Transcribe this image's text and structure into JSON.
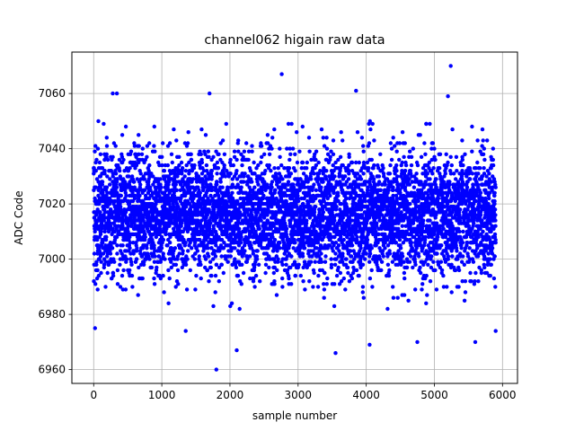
{
  "chart_data": {
    "type": "scatter",
    "title": "channel062 higain raw data",
    "xlabel": "sample number",
    "ylabel": "ADC Code",
    "xlim": [
      -320,
      6220
    ],
    "ylim": [
      6955,
      7075
    ],
    "xticks": [
      0,
      1000,
      2000,
      3000,
      4000,
      5000,
      6000
    ],
    "yticks": [
      6960,
      6980,
      7000,
      7020,
      7040,
      7060
    ],
    "grid": true,
    "marker": "filled circle",
    "colors": {
      "points": "#0000ff",
      "grid": "#b0b0b0",
      "axes": "#000000"
    },
    "series": [
      {
        "n_points": 5900,
        "x_range": [
          0,
          5900
        ],
        "mean": 7016,
        "std": 11,
        "typical_range": [
          6985,
          7045
        ],
        "notable_points": [
          {
            "x": 1800,
            "y": 6960
          },
          {
            "x": 2760,
            "y": 7067
          },
          {
            "x": 5240,
            "y": 7070
          },
          {
            "x": 280,
            "y": 7060
          },
          {
            "x": 340,
            "y": 7060
          },
          {
            "x": 1700,
            "y": 7060
          },
          {
            "x": 3850,
            "y": 7061
          },
          {
            "x": 5200,
            "y": 7059
          },
          {
            "x": 2100,
            "y": 6967
          },
          {
            "x": 3550,
            "y": 6966
          },
          {
            "x": 4050,
            "y": 6969
          },
          {
            "x": 4750,
            "y": 6970
          },
          {
            "x": 5600,
            "y": 6970
          },
          {
            "x": 20,
            "y": 6975
          },
          {
            "x": 1350,
            "y": 6974
          },
          {
            "x": 5900,
            "y": 6974
          }
        ]
      }
    ]
  }
}
